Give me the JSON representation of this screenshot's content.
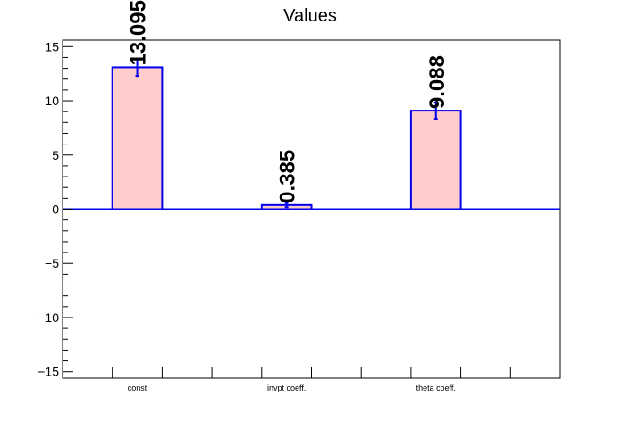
{
  "chart_data": {
    "type": "bar",
    "title": "Values",
    "categories": [
      "const",
      "invpt coeff.",
      "theta coeff."
    ],
    "values": [
      13.095,
      0.385,
      9.088
    ],
    "errors": [
      0.8,
      0.2,
      0.75
    ],
    "data_labels": [
      "13.095",
      "0.385",
      "9.088"
    ],
    "ylim": [
      -15.6,
      15.6
    ],
    "yticks": [
      -15,
      -10,
      -5,
      0,
      5,
      10,
      15
    ],
    "ytick_labels": [
      "−15",
      "−10",
      "−5",
      "0",
      "5",
      "10",
      "15"
    ],
    "grid": false,
    "colors": {
      "bar_fill": "#ffcccc",
      "bar_edge": "#0000ee",
      "axis": "#000000"
    }
  }
}
